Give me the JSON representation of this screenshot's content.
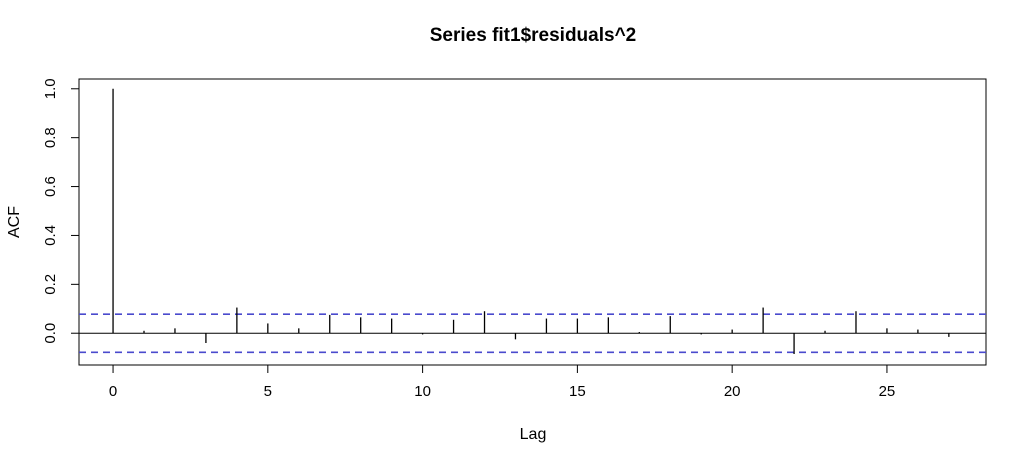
{
  "chart_data": {
    "type": "bar",
    "title": "Series  fit1$residuals^2",
    "xlabel": "Lag",
    "ylabel": "ACF",
    "xlim": [
      -1.1,
      28.2
    ],
    "ylim": [
      -0.13,
      1.04
    ],
    "x_ticks": [
      "0",
      "5",
      "10",
      "15",
      "20",
      "25"
    ],
    "y_ticks": [
      "0.0",
      "0.2",
      "0.4",
      "0.6",
      "0.8",
      "1.0"
    ],
    "confidence_bound": 0.078,
    "lags": [
      0,
      1,
      2,
      3,
      4,
      5,
      6,
      7,
      8,
      9,
      10,
      11,
      12,
      13,
      14,
      15,
      16,
      17,
      18,
      19,
      20,
      21,
      22,
      23,
      24,
      25,
      26,
      27
    ],
    "acf": [
      1.0,
      0.01,
      0.02,
      -0.04,
      0.105,
      0.04,
      0.02,
      0.075,
      0.065,
      0.06,
      -0.005,
      0.055,
      0.09,
      -0.025,
      0.06,
      0.06,
      0.065,
      0.005,
      0.07,
      -0.005,
      0.015,
      0.105,
      -0.085,
      0.01,
      0.09,
      0.02,
      0.015,
      -0.015
    ],
    "colors": {
      "bars": "#000000",
      "ci": "#4a4acd",
      "axes": "#000000"
    }
  }
}
